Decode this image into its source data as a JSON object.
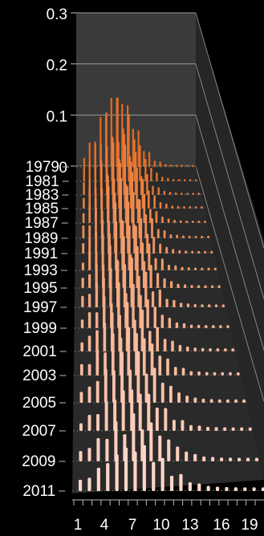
{
  "chart_data": {
    "type": "bar",
    "style": "3d-depth",
    "z_axis": {
      "tick_labels": [
        "0.3",
        "0.2",
        "0.1",
        "0"
      ],
      "range": [
        0,
        0.3
      ]
    },
    "y_axis": {
      "tick_labels": [
        "1979",
        "1981",
        "1983",
        "1985",
        "1987",
        "1989",
        "1991",
        "1993",
        "1995",
        "1997",
        "1999",
        "2001",
        "2003",
        "2005",
        "2007",
        "2009",
        "2011"
      ]
    },
    "x_axis": {
      "tick_labels": [
        "1",
        "4",
        "7",
        "10",
        "13",
        "16",
        "19"
      ]
    },
    "series_summary": [
      {
        "year": "1979",
        "peak": 0.16
      },
      {
        "year": "1983",
        "peak": 0.12
      },
      {
        "year": "1987",
        "peak": 0.1
      },
      {
        "year": "1991",
        "peak": 0.08
      },
      {
        "year": "1995",
        "peak": 0.07
      },
      {
        "year": "1999",
        "peak": 0.06
      },
      {
        "year": "2003",
        "peak": 0.06
      },
      {
        "year": "2007",
        "peak": 0.05
      },
      {
        "year": "2011",
        "peak": 0.05
      }
    ],
    "colors": {
      "front": "#ffd6c9",
      "back": "#e46b1f",
      "back_wall": "#3a3a3a",
      "floor": "#2a2a2a",
      "grid": "#9a9a9a"
    },
    "grid": true
  }
}
